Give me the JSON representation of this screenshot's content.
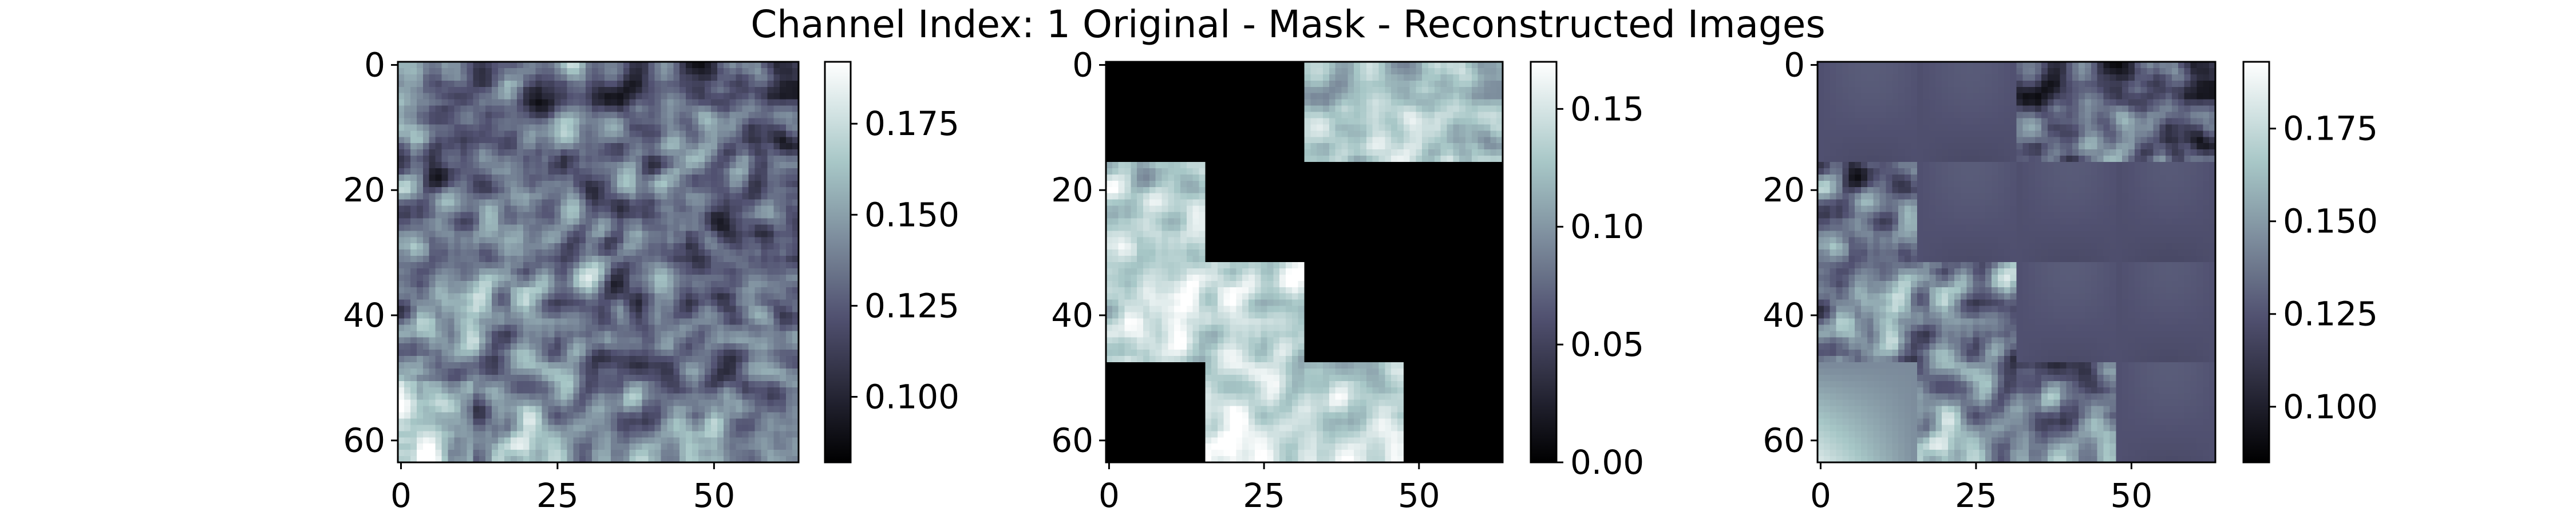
{
  "figure": {
    "title": "Channel Index: 1 Original - Mask - Reconstructed Images"
  },
  "chart_data": [
    {
      "type": "heatmap",
      "name": "original",
      "grid_size": [
        64,
        64
      ],
      "x_ticks": [
        0,
        25,
        50
      ],
      "y_ticks": [
        0,
        20,
        40,
        60
      ],
      "colormap": "bone",
      "colorbar": {
        "range": [
          0.082,
          0.192
        ],
        "ticks": [
          "0.100",
          "0.125",
          "0.150",
          "0.175"
        ]
      },
      "value_range": [
        0.082,
        0.192
      ]
    },
    {
      "type": "heatmap",
      "name": "mask",
      "grid_size": [
        64,
        64
      ],
      "x_ticks": [
        0,
        25,
        50
      ],
      "y_ticks": [
        0,
        20,
        40,
        60
      ],
      "colormap": "bone",
      "colorbar": {
        "range": [
          0.0,
          0.17
        ],
        "ticks": [
          "0.00",
          "0.05",
          "0.10",
          "0.15"
        ]
      },
      "patch_grid": 4,
      "visible_patches": [
        [
          0,
          2
        ],
        [
          0,
          3
        ],
        [
          1,
          0
        ],
        [
          2,
          0
        ],
        [
          2,
          1
        ],
        [
          3,
          1
        ],
        [
          3,
          2
        ]
      ]
    },
    {
      "type": "heatmap",
      "name": "reconstructed",
      "grid_size": [
        64,
        64
      ],
      "x_ticks": [
        0,
        25,
        50
      ],
      "y_ticks": [
        0,
        20,
        40,
        60
      ],
      "colormap": "bone",
      "colorbar": {
        "range": [
          0.085,
          0.193
        ],
        "ticks": [
          "0.100",
          "0.125",
          "0.150",
          "0.175"
        ]
      }
    }
  ]
}
